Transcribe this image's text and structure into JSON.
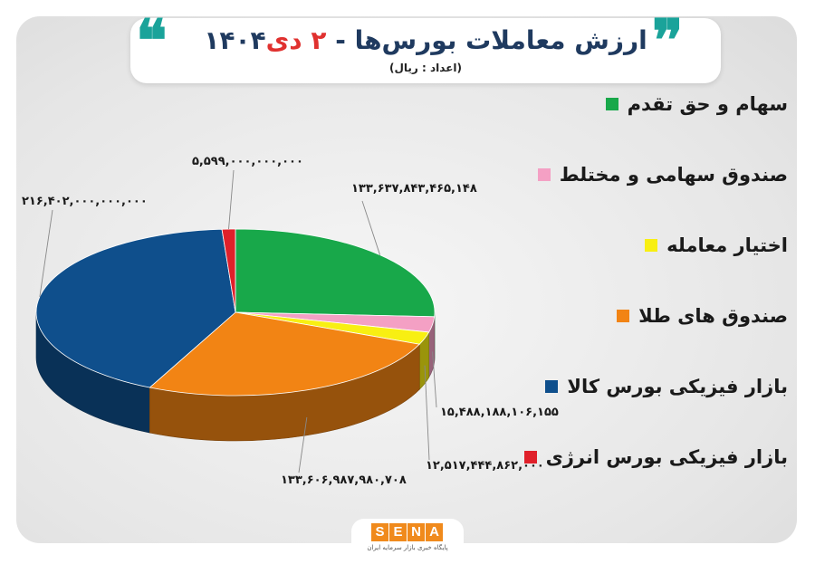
{
  "header": {
    "title_main": "ارزش معاملات بورس‌ها - ",
    "title_date": "۲ دی",
    "title_year": "۱۴۰۴",
    "subtitle": "(اعداد : ریال)",
    "quote_open": "❝",
    "quote_close": "❞"
  },
  "logo": {
    "letters": [
      "S",
      "E",
      "N",
      "A"
    ],
    "tagline": "پایگاه خبری بازار سرمایه ایران"
  },
  "chart_data": {
    "type": "pie",
    "title": "ارزش معاملات بورس‌ها - ۲ دی ۱۴۰۴",
    "unit": "(اعداد : ریال)",
    "series": [
      {
        "name": "سهام و حق تقدم",
        "value": 133637843465148,
        "label": "۱۳۳,۶۳۷,۸۴۳,۴۶۵,۱۴۸",
        "color": "#18a84a"
      },
      {
        "name": "صندوق سهامی و مختلط",
        "value": 15488188106155,
        "label": "۱۵,۴۸۸,۱۸۸,۱۰۶,۱۵۵",
        "color": "#f4a0c4"
      },
      {
        "name": "اختیار معامله",
        "value": 12517444862000,
        "label": "۱۲,۵۱۷,۴۴۴,۸۶۲,۰۰۰",
        "color": "#f8ef12"
      },
      {
        "name": "صندوق های طلا",
        "value": 133606987980708,
        "label": "۱۳۳,۶۰۶,۹۸۷,۹۸۰,۷۰۸",
        "color": "#f28414"
      },
      {
        "name": "بازار فیزیکی بورس کالا",
        "value": 216402000000000,
        "label": "۲۱۶,۴۰۲,۰۰۰,۰۰۰,۰۰۰",
        "color": "#0f4f8c"
      },
      {
        "name": "بازار فیزیکی بورس انرژی",
        "value": 5599000000000,
        "label": "۵,۵۹۹,۰۰۰,۰۰۰,۰۰۰",
        "color": "#e0202a"
      }
    ],
    "legend_position": "right"
  }
}
